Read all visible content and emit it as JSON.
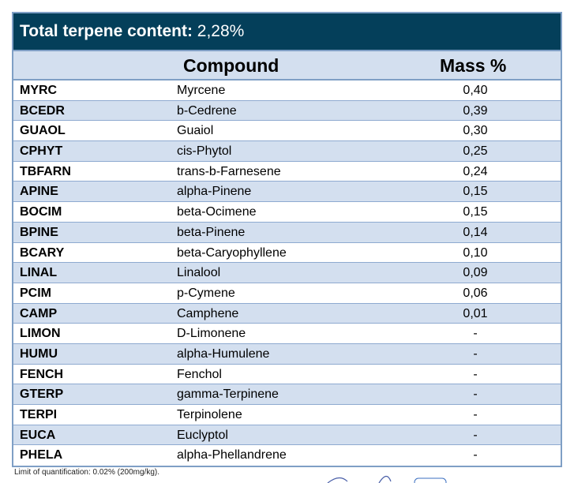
{
  "title": {
    "label": "Total terpene content:",
    "value": "2,28%"
  },
  "headers": {
    "compound": "Compound",
    "mass": "Mass %"
  },
  "rows": [
    {
      "abbr": "MYRC",
      "name": "Myrcene",
      "mass": "0,40"
    },
    {
      "abbr": "BCEDR",
      "name": "b-Cedrene",
      "mass": "0,39"
    },
    {
      "abbr": "GUAOL",
      "name": "Guaiol",
      "mass": "0,30"
    },
    {
      "abbr": "CPHYT",
      "name": "cis-Phytol",
      "mass": "0,25"
    },
    {
      "abbr": "TBFARN",
      "name": "trans-b-Farnesene",
      "mass": "0,24"
    },
    {
      "abbr": "APINE",
      "name": "alpha-Pinene",
      "mass": "0,15"
    },
    {
      "abbr": "BOCIM",
      "name": "beta-Ocimene",
      "mass": "0,15"
    },
    {
      "abbr": "BPINE",
      "name": "beta-Pinene",
      "mass": "0,14"
    },
    {
      "abbr": "BCARY",
      "name": "beta-Caryophyllene",
      "mass": "0,10"
    },
    {
      "abbr": "LINAL",
      "name": "Linalool",
      "mass": "0,09"
    },
    {
      "abbr": "PCIM",
      "name": "p-Cymene",
      "mass": "0,06"
    },
    {
      "abbr": "CAMP",
      "name": "Camphene",
      "mass": "0,01"
    },
    {
      "abbr": "LIMON",
      "name": "D-Limonene",
      "mass": "-"
    },
    {
      "abbr": "HUMU",
      "name": "alpha-Humulene",
      "mass": "-"
    },
    {
      "abbr": "FENCH",
      "name": "Fenchol",
      "mass": "-"
    },
    {
      "abbr": "GTERP",
      "name": "gamma-Terpinene",
      "mass": "-"
    },
    {
      "abbr": "TERPI",
      "name": "Terpinolene",
      "mass": "-"
    },
    {
      "abbr": "EUCA",
      "name": "Euclyptol",
      "mass": "-"
    },
    {
      "abbr": "PHELA",
      "name": "alpha-Phellandrene",
      "mass": "-"
    }
  ],
  "footnote": "Limit of quantification: 0.02% (200mg/kg)."
}
